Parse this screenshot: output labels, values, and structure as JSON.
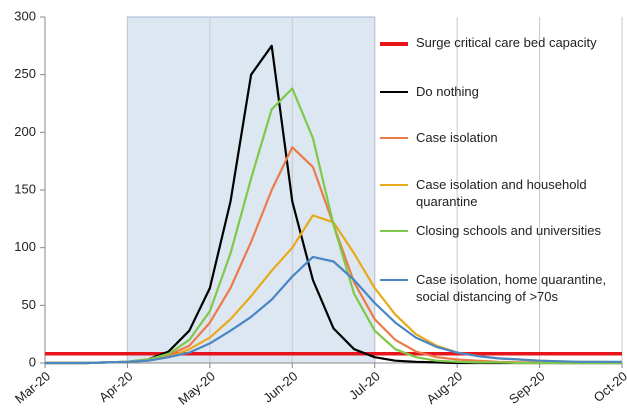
{
  "chart_data": {
    "type": "line",
    "x": [
      0,
      0.25,
      0.5,
      0.75,
      1,
      1.25,
      1.5,
      1.75,
      2,
      2.25,
      2.5,
      2.75,
      3,
      3.25,
      3.5,
      3.75,
      4,
      4.25,
      4.5,
      4.75,
      5,
      5.25,
      5.5,
      5.75,
      6,
      6.25,
      6.5,
      6.75,
      7
    ],
    "xlim": [
      0,
      7
    ],
    "xticks": [
      {
        "value": 0,
        "label": "Mar-20"
      },
      {
        "value": 1,
        "label": "Apr-20"
      },
      {
        "value": 2,
        "label": "May-20"
      },
      {
        "value": 3,
        "label": "Jun-20"
      },
      {
        "value": 4,
        "label": "Jul-20"
      },
      {
        "value": 5,
        "label": "Aug-20"
      },
      {
        "value": 6,
        "label": "Sep-20"
      },
      {
        "value": 7,
        "label": "Oct-20"
      }
    ],
    "ylim": [
      0,
      300
    ],
    "yticks": [
      0,
      50,
      100,
      150,
      200,
      250,
      300
    ],
    "shaded_xrange": [
      1,
      4
    ],
    "grid": true,
    "series": [
      {
        "name": "Surge critical care bed capacity",
        "color": "#e8141b",
        "values": [
          8,
          8,
          8,
          8,
          8,
          8,
          8,
          8,
          8,
          8,
          8,
          8,
          8,
          8,
          8,
          8,
          8,
          8,
          8,
          8,
          8,
          8,
          8,
          8,
          8,
          8,
          8,
          8,
          8
        ]
      },
      {
        "name": "Do nothing",
        "color": "#000000",
        "values": [
          0,
          0,
          0,
          0.5,
          1,
          3,
          10,
          28,
          65,
          140,
          250,
          275,
          140,
          72,
          30,
          12,
          5,
          2,
          1,
          0.5,
          0,
          0,
          0,
          0,
          0,
          0,
          0,
          0,
          0
        ]
      },
      {
        "name": "Case isolation",
        "color": "#ec7b4a",
        "values": [
          0,
          0,
          0,
          0.5,
          1,
          3,
          7,
          15,
          35,
          65,
          105,
          150,
          187,
          170,
          120,
          70,
          38,
          20,
          10,
          5,
          3,
          2,
          1,
          0.5,
          0.5,
          0,
          0,
          0,
          0
        ]
      },
      {
        "name": "Case isolation and household quarantine",
        "color": "#e8aa1a",
        "values": [
          0,
          0,
          0,
          0.5,
          1,
          2,
          5,
          12,
          22,
          38,
          58,
          80,
          100,
          128,
          122,
          95,
          65,
          42,
          25,
          15,
          9,
          6,
          4,
          3,
          2,
          1.5,
          1,
          1,
          0.5
        ]
      },
      {
        "name": "Closing schools and universities",
        "color": "#7ec84a",
        "values": [
          0,
          0,
          0,
          0.5,
          1,
          3,
          8,
          20,
          45,
          95,
          160,
          220,
          238,
          195,
          120,
          60,
          28,
          12,
          5,
          2,
          1,
          0.5,
          0.5,
          0,
          0,
          0,
          0,
          0,
          0
        ]
      },
      {
        "name": "Case isolation, home quarantine, social distancing of >70s",
        "color": "#4a86c5",
        "values": [
          0,
          0,
          0,
          0.5,
          1,
          2,
          5,
          9,
          17,
          28,
          40,
          55,
          75,
          92,
          88,
          72,
          52,
          35,
          22,
          14,
          9,
          6,
          4,
          3,
          2,
          1.5,
          1,
          1,
          1
        ]
      }
    ]
  }
}
